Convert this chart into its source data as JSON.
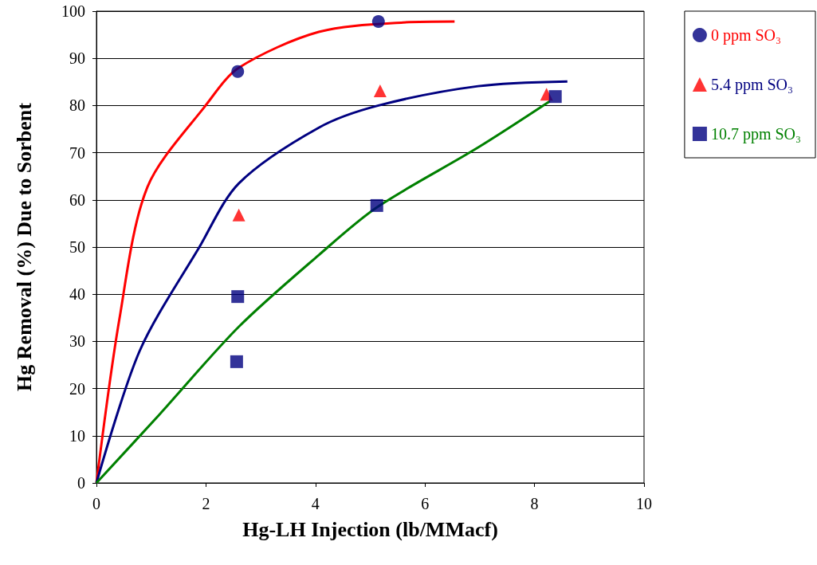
{
  "chart_data": {
    "type": "scatter",
    "xlabel": "Hg-LH Injection (lb/MMacf)",
    "ylabel": "Hg Removal (%) Due to Sorbent",
    "xlim": [
      0,
      10
    ],
    "xticks": [
      0,
      2,
      4,
      6,
      8,
      10
    ],
    "ylim": [
      0,
      100
    ],
    "yticks": [
      0,
      10,
      20,
      30,
      40,
      50,
      60,
      70,
      80,
      90,
      100
    ],
    "grid": "y",
    "legend": "right",
    "series": [
      {
        "name": "0 ppm SO₃",
        "color": "#000080",
        "marker": "circle",
        "x": [
          2.58,
          5.15
        ],
        "values": [
          87.2,
          97.8
        ]
      },
      {
        "type": "line",
        "color": "#ff0000",
        "marker": "none",
        "x": [
          0,
          0.42,
          0.93,
          2.02,
          2.6,
          4.06,
          5.6,
          6.54
        ],
        "values": [
          0,
          34.8,
          62.7,
          80.4,
          88,
          95.6,
          97.6,
          97.8
        ]
      },
      {
        "name": "5.4 ppm SO₃",
        "color": "#ff0000",
        "marker": "triangle",
        "x": [
          2.6,
          5.18,
          8.22
        ],
        "values": [
          56.8,
          83.1,
          82.4
        ]
      },
      {
        "type": "line",
        "color": "#000080",
        "marker": "none",
        "x": [
          0,
          0.79,
          1.88,
          2.6,
          4.06,
          5.15,
          6.97,
          8.6
        ],
        "values": [
          0,
          28,
          50,
          63.5,
          75.3,
          80,
          84.1,
          85.1
        ]
      },
      {
        "name": "10.7 ppm SO₃",
        "color": "#000080",
        "marker": "square",
        "x": [
          2.58,
          2.56,
          5.12,
          8.38
        ],
        "values": [
          39.5,
          25.7,
          58.8,
          81.9
        ]
      },
      {
        "type": "line",
        "color": "#008000",
        "marker": "none",
        "x": [
          0,
          1.15,
          2.6,
          4.06,
          5.12,
          6.97,
          8.28
        ],
        "values": [
          0,
          14.5,
          33.1,
          48.3,
          58.4,
          71.1,
          80.9
        ]
      }
    ]
  }
}
